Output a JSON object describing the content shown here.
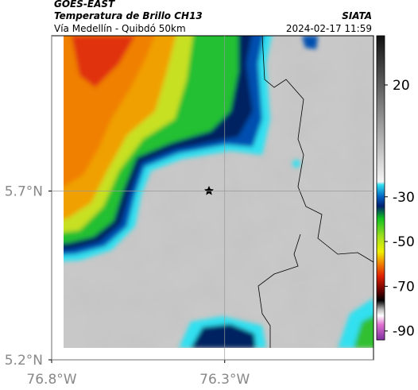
{
  "header": {
    "source": "GOES-EAST",
    "title": "Temperatura de Brillo CH13",
    "subtitle": "Vía Medellín - Quibdó 50km",
    "agency": "SIATA",
    "timestamp": "2024-02-17 11:59"
  },
  "map": {
    "xlim": [
      -76.8,
      -75.87
    ],
    "ylim": [
      5.2,
      6.16
    ],
    "xticks": [
      {
        "value": -76.8,
        "label": "76.8°W"
      },
      {
        "value": -76.3,
        "label": "76.3°W"
      }
    ],
    "yticks": [
      {
        "value": 5.2,
        "label": "5.2°N"
      },
      {
        "value": 5.7,
        "label": "5.7°N"
      }
    ],
    "grid": true
  },
  "colorbar": {
    "lim": [
      42,
      -94
    ],
    "ticks": [
      20,
      -30,
      -50,
      -70,
      -90
    ]
  }
}
